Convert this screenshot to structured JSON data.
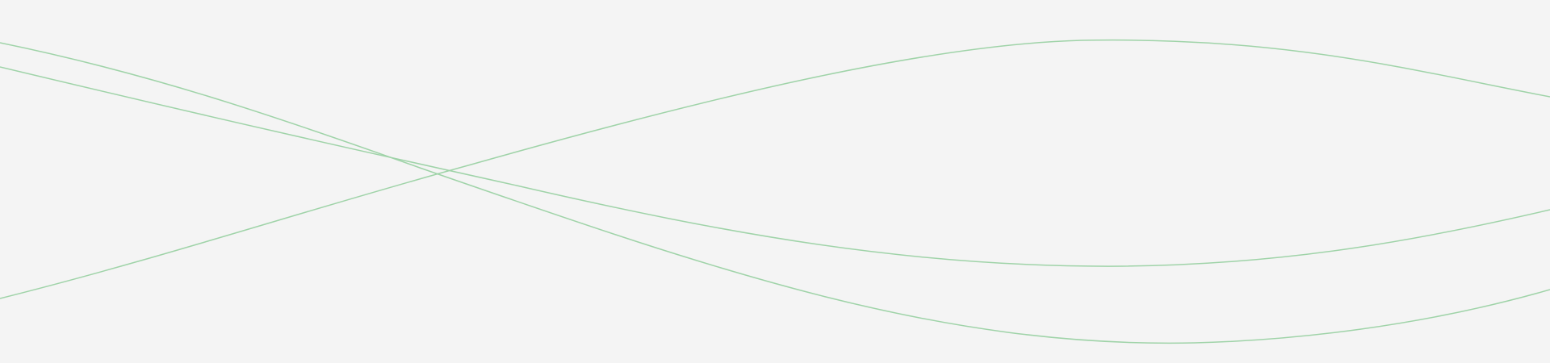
{
  "background": "#f4f4f4",
  "line_color": "#9fd3a8",
  "waves": [
    {
      "name": "wave-line-1"
    },
    {
      "name": "wave-line-2"
    },
    {
      "name": "wave-line-3"
    }
  ]
}
